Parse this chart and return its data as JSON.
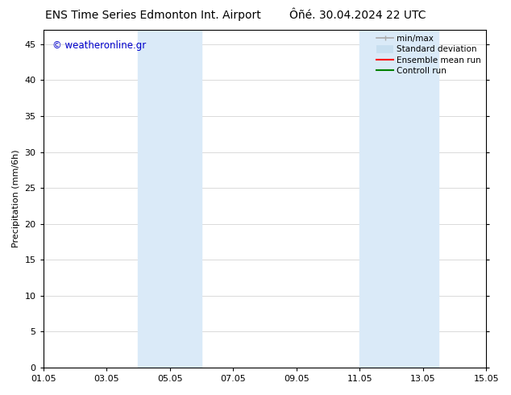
{
  "title_left": "ENS Time Series Edmonton Int. Airport",
  "title_right": "Ôñé. 30.04.2024 22 UTC",
  "ylabel": "Precipitation (mm/6h)",
  "xtick_labels": [
    "01.05",
    "03.05",
    "05.05",
    "07.05",
    "09.05",
    "11.05",
    "13.05",
    "15.05"
  ],
  "xtick_positions": [
    0,
    2,
    4,
    6,
    8,
    10,
    12,
    14
  ],
  "ylim": [
    0,
    47
  ],
  "ytick_positions": [
    0,
    5,
    10,
    15,
    20,
    25,
    30,
    35,
    40,
    45
  ],
  "shaded_regions": [
    {
      "xstart": 3.0,
      "xend": 5.0,
      "color": "#daeaf8"
    },
    {
      "xstart": 10.0,
      "xend": 12.5,
      "color": "#daeaf8"
    }
  ],
  "watermark_text": "© weatheronline.gr",
  "watermark_color": "#0000cc",
  "legend_entries": [
    {
      "label": "min/max",
      "color": "#aaaaaa",
      "lw": 1.2
    },
    {
      "label": "Standard deviation",
      "color": "#c8dff0",
      "lw": 6
    },
    {
      "label": "Ensemble mean run",
      "color": "red",
      "lw": 1.5
    },
    {
      "label": "Controll run",
      "color": "green",
      "lw": 1.5
    }
  ],
  "background_color": "#ffffff",
  "grid_color": "#cccccc",
  "tick_label_fontsize": 8,
  "axis_label_fontsize": 8,
  "title_fontsize": 10
}
